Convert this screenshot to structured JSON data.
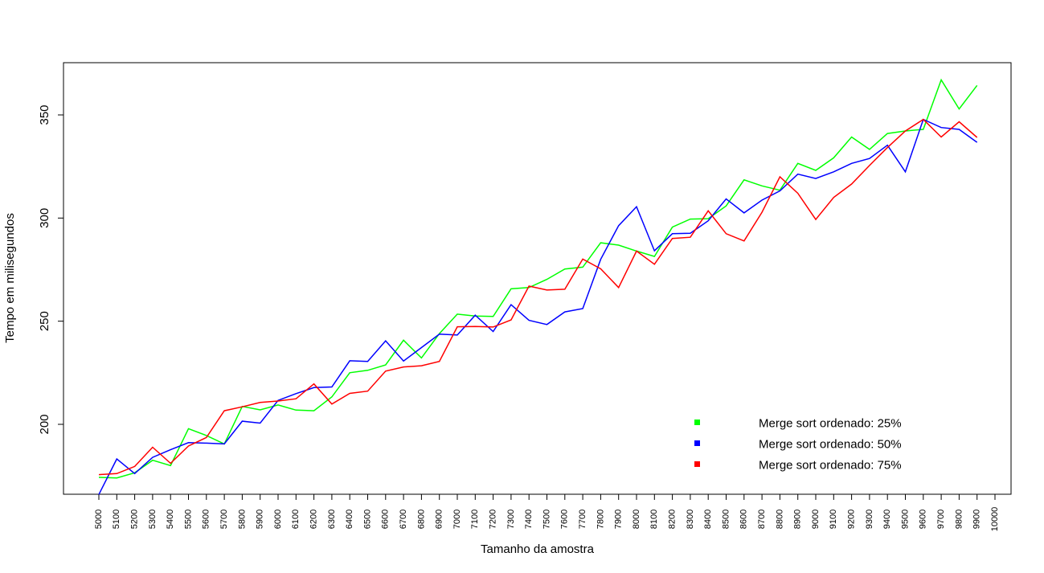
{
  "chart_data": {
    "type": "line",
    "title": "",
    "xlabel": "Tamanho da amostra",
    "ylabel": "Tempo em milisegundos",
    "x": [
      5000,
      5100,
      5200,
      5300,
      5400,
      5500,
      5600,
      5700,
      5800,
      5900,
      6000,
      6100,
      6200,
      6300,
      6400,
      6500,
      6600,
      6700,
      6800,
      6900,
      7000,
      7100,
      7200,
      7300,
      7400,
      7500,
      7600,
      7700,
      7800,
      7900,
      8000,
      8100,
      8200,
      8300,
      8400,
      8500,
      8600,
      8700,
      8800,
      8900,
      9000,
      9100,
      9200,
      9300,
      9400,
      9500,
      9600,
      9700,
      9800,
      9900
    ],
    "x_ticks": [
      5000,
      5100,
      5200,
      5300,
      5400,
      5500,
      5600,
      5700,
      5800,
      5900,
      6000,
      6100,
      6200,
      6300,
      6400,
      6500,
      6600,
      6700,
      6800,
      6900,
      7000,
      7100,
      7200,
      7300,
      7400,
      7500,
      7600,
      7700,
      7800,
      7900,
      8000,
      8100,
      8200,
      8300,
      8400,
      8500,
      8600,
      8700,
      8800,
      8900,
      9000,
      9100,
      9200,
      9300,
      9400,
      9500,
      9600,
      9700,
      9800,
      9900,
      10000
    ],
    "xlim": [
      4800,
      10100
    ],
    "ylim": [
      166,
      380
    ],
    "y_ticks": [
      200,
      250,
      300,
      350
    ],
    "grid": false,
    "legend_position": "bottom-right",
    "series": [
      {
        "name": "Merge sort ordenado: 25%",
        "color": "#00ff00",
        "values": [
          174.3,
          174.0,
          176.5,
          182.6,
          180.0,
          197.9,
          194.6,
          190.5,
          208.7,
          207.0,
          209.4,
          206.9,
          206.6,
          213.3,
          225.0,
          226.2,
          228.8,
          240.8,
          232.2,
          244.0,
          253.4,
          252.5,
          252.3,
          265.7,
          266.3,
          270.3,
          275.3,
          276.2,
          288.0,
          286.9,
          284.0,
          281.4,
          295.6,
          299.5,
          299.7,
          305.9,
          318.5,
          315.6,
          313.5,
          326.5,
          323.1,
          329.2,
          339.3,
          333.3,
          341.0,
          342.2,
          343.0,
          367.0,
          352.9,
          364.3
        ]
      },
      {
        "name": "Merge sort ordenado: 50%",
        "color": "#0000ff",
        "values": [
          166.0,
          183.2,
          176.1,
          184.0,
          187.7,
          191.1,
          190.9,
          190.5,
          201.5,
          200.6,
          211.6,
          214.9,
          217.8,
          218.1,
          230.8,
          230.5,
          240.5,
          230.7,
          237.2,
          243.7,
          243.3,
          252.9,
          245.0,
          258.0,
          250.4,
          248.4,
          254.5,
          256.1,
          280.0,
          296.3,
          305.5,
          284.1,
          292.4,
          292.6,
          298.7,
          309.3,
          302.5,
          308.7,
          313.2,
          321.3,
          319.2,
          322.4,
          326.5,
          328.9,
          335.3,
          322.4,
          347.8,
          343.9,
          343.0,
          336.7
        ]
      },
      {
        "name": "Merge sort ordenado: 75%",
        "color": "#ff0000",
        "values": [
          175.6,
          176.1,
          179.6,
          188.9,
          181.1,
          189.5,
          193.6,
          206.6,
          208.5,
          210.6,
          211.3,
          212.4,
          219.6,
          209.8,
          215.0,
          216.1,
          225.8,
          227.8,
          228.4,
          230.5,
          247.3,
          247.4,
          247.2,
          250.6,
          267.0,
          265.1,
          265.5,
          280.1,
          275.4,
          266.3,
          284.0,
          277.6,
          290.1,
          290.7,
          303.5,
          292.4,
          288.9,
          302.8,
          320.0,
          312.0,
          299.3,
          310.0,
          316.5,
          325.5,
          334.2,
          342.2,
          347.8,
          339.3,
          346.7,
          339.1
        ]
      }
    ]
  }
}
